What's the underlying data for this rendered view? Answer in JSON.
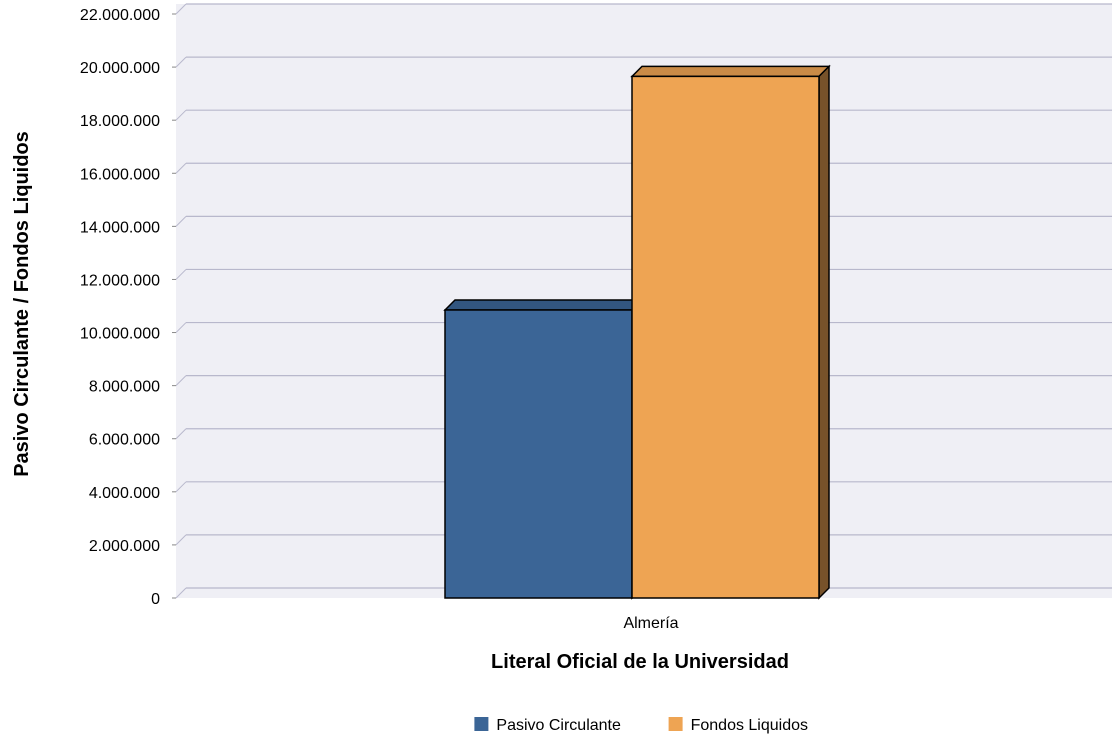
{
  "chart_data": {
    "type": "bar",
    "categories": [
      "Almería"
    ],
    "series": [
      {
        "name": "Pasivo Circulante",
        "values": [
          10850000
        ],
        "color": "#3b6596"
      },
      {
        "name": "Fondos Liquidos",
        "values": [
          19650000
        ],
        "color": "#eea453"
      }
    ],
    "xlabel": "Literal Oficial de la Universidad",
    "ylabel": "Pasivo Circulante / Fondos Liquidos",
    "ylim": [
      0,
      22000000
    ],
    "yticks": [
      0,
      2000000,
      4000000,
      6000000,
      8000000,
      10000000,
      12000000,
      14000000,
      16000000,
      18000000,
      20000000,
      22000000
    ],
    "ytick_labels": [
      "0",
      "2.000.000",
      "4.000.000",
      "6.000.000",
      "8.000.000",
      "10.000.000",
      "12.000.000",
      "14.000.000",
      "16.000.000",
      "18.000.000",
      "20.000.000",
      "22.000.000"
    ],
    "grid": true,
    "legend_position": "bottom-center",
    "plot_background": "#efeff5",
    "gridline_color": "#b8b8cc"
  }
}
